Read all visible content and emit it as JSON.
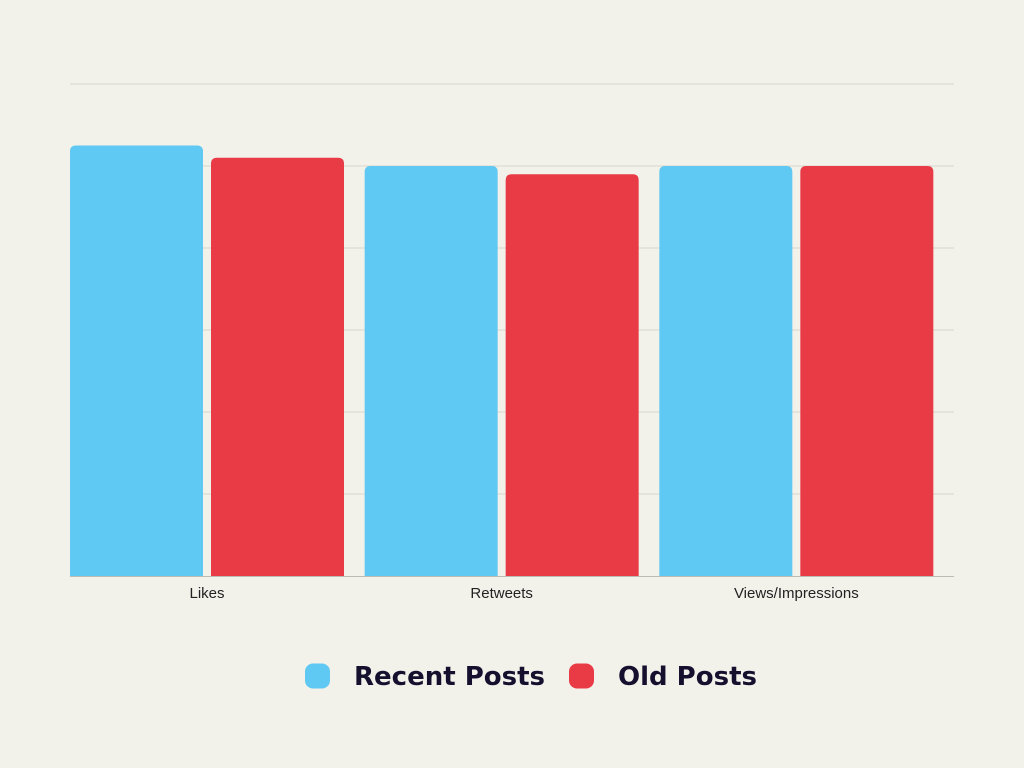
{
  "chart_data": {
    "type": "bar",
    "title": "",
    "xlabel": "",
    "ylabel": "",
    "categories": [
      "Likes",
      "Retweets",
      "Views/Impressions"
    ],
    "series": [
      {
        "name": "Recent Posts",
        "color": "#5fc8f3",
        "values": [
          105,
          100,
          100
        ]
      },
      {
        "name": "Old Posts",
        "color": "#e83b45",
        "values": [
          102,
          98,
          100
        ]
      }
    ],
    "ylim": [
      0,
      120
    ],
    "y_gridlines": [
      20,
      40,
      60,
      80,
      100,
      120
    ],
    "y_tick_labels_shown": false,
    "grid": true,
    "legend": "bottom-center",
    "colors": {
      "background": "#f2f1ea",
      "gridline": "#d8d7cf",
      "baseline": "#bdbcb4"
    }
  }
}
